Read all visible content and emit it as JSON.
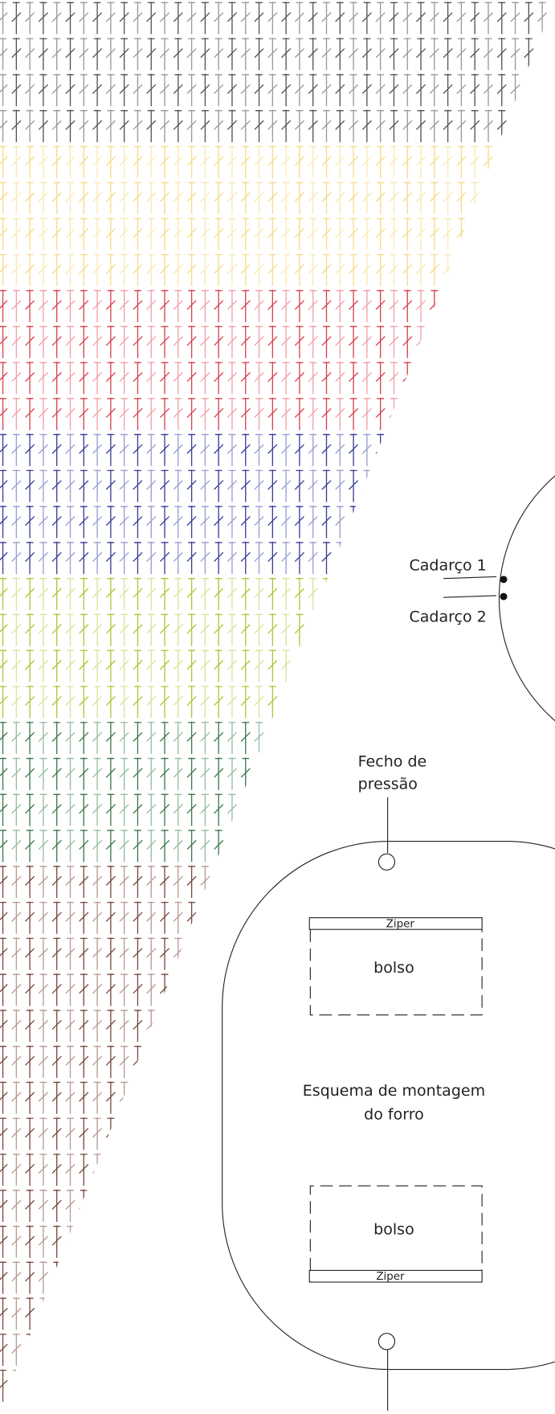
{
  "lace": {
    "labels": [
      "Cadarço 1",
      "Cadarço 2"
    ]
  },
  "clasp": {
    "lines": [
      "Fecho de",
      "pressão"
    ]
  },
  "lining": {
    "top_pocket": {
      "zipper": "Ziper",
      "label": "bolso"
    },
    "title_lines": [
      "Esquema de montagem",
      "do forro"
    ],
    "bottom_pocket": {
      "zipper": "Ziper",
      "label": "bolso"
    }
  }
}
